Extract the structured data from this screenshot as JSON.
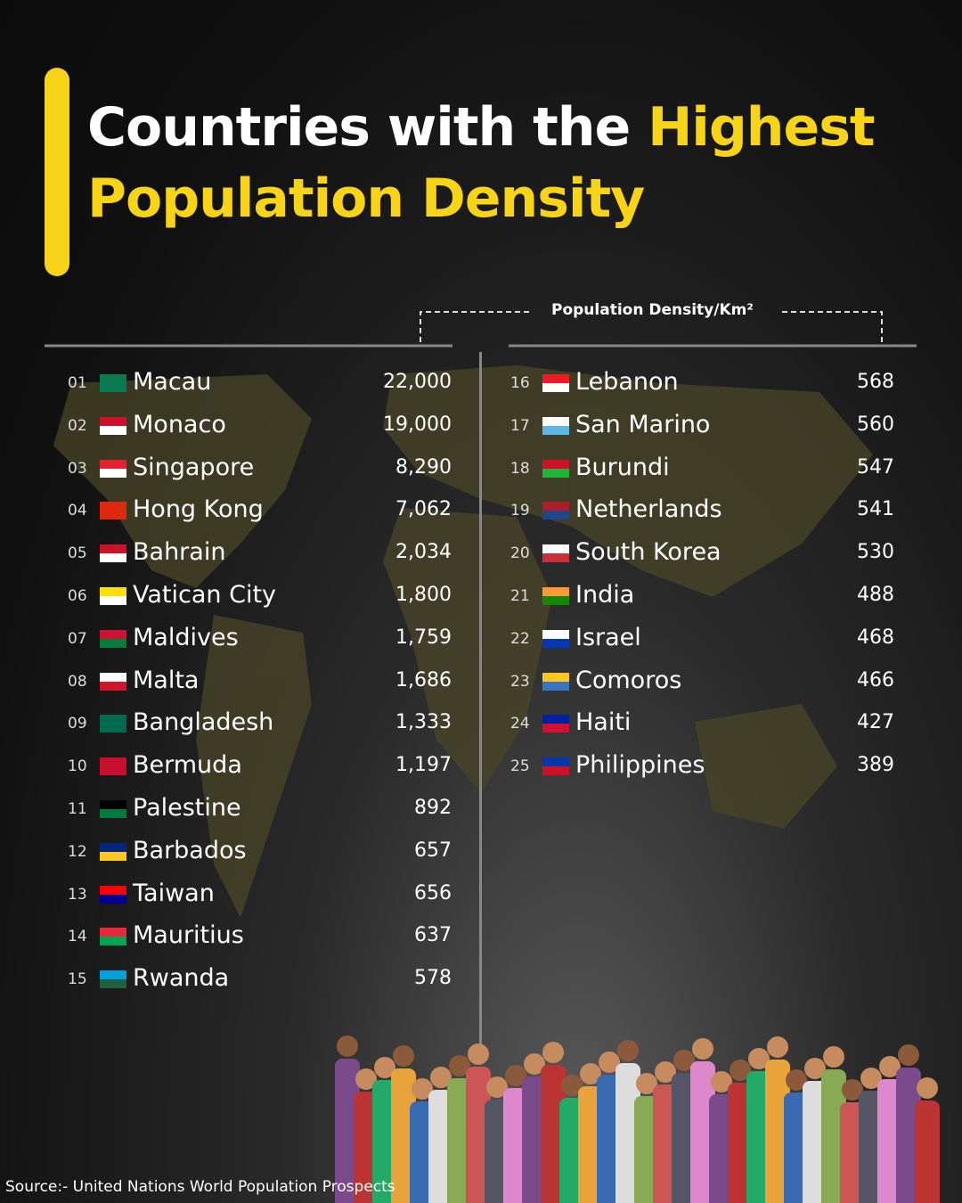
{
  "title": {
    "lead": "Countries with the",
    "highlight": "Highest",
    "line2": "Population Density"
  },
  "column_header": "Population Density/Km²",
  "table": {
    "rows": [
      [
        "01",
        "Macau",
        "22,000"
      ],
      [
        "02",
        "Monaco",
        "19,000"
      ],
      [
        "03",
        "Singapore",
        "8,290"
      ],
      [
        "04",
        "Hong Kong",
        "7,062"
      ],
      [
        "05",
        "Bahrain",
        "2,034"
      ],
      [
        "06",
        "Vatican City",
        "1,800"
      ],
      [
        "07",
        "Maldives",
        "1,759"
      ],
      [
        "08",
        "Malta",
        "1,686"
      ],
      [
        "09",
        "Bangladesh",
        "1,333"
      ],
      [
        "10",
        "Bermuda",
        "1,197"
      ],
      [
        "11",
        "Palestine",
        "892"
      ],
      [
        "12",
        "Barbados",
        "657"
      ],
      [
        "13",
        "Taiwan",
        "656"
      ],
      [
        "14",
        "Mauritius",
        "637"
      ],
      [
        "15",
        "Rwanda",
        "578"
      ],
      [
        "16",
        "Lebanon",
        "568"
      ],
      [
        "17",
        "San Marino",
        "560"
      ],
      [
        "18",
        "Burundi",
        "547"
      ],
      [
        "19",
        "Netherlands",
        "541"
      ],
      [
        "20",
        "South Korea",
        "530"
      ],
      [
        "21",
        "India",
        "488"
      ],
      [
        "22",
        "Israel",
        "468"
      ],
      [
        "23",
        "Comoros",
        "466"
      ],
      [
        "24",
        "Haiti",
        "427"
      ],
      [
        "25",
        "Philippines",
        "389"
      ]
    ]
  },
  "source": "Source:- United Nations World Population Prospects"
}
